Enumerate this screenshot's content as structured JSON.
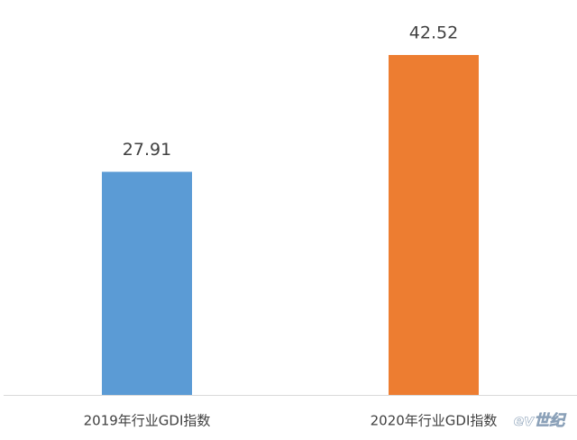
{
  "chart_data": {
    "type": "bar",
    "categories": [
      "2019年行业GDI指数",
      "2020年行业GDI指数"
    ],
    "values": [
      27.91,
      42.52
    ],
    "colors": [
      "#5b9bd5",
      "#ed7d31"
    ],
    "ylim": [
      0,
      45
    ],
    "watermark": "ev世纪"
  }
}
